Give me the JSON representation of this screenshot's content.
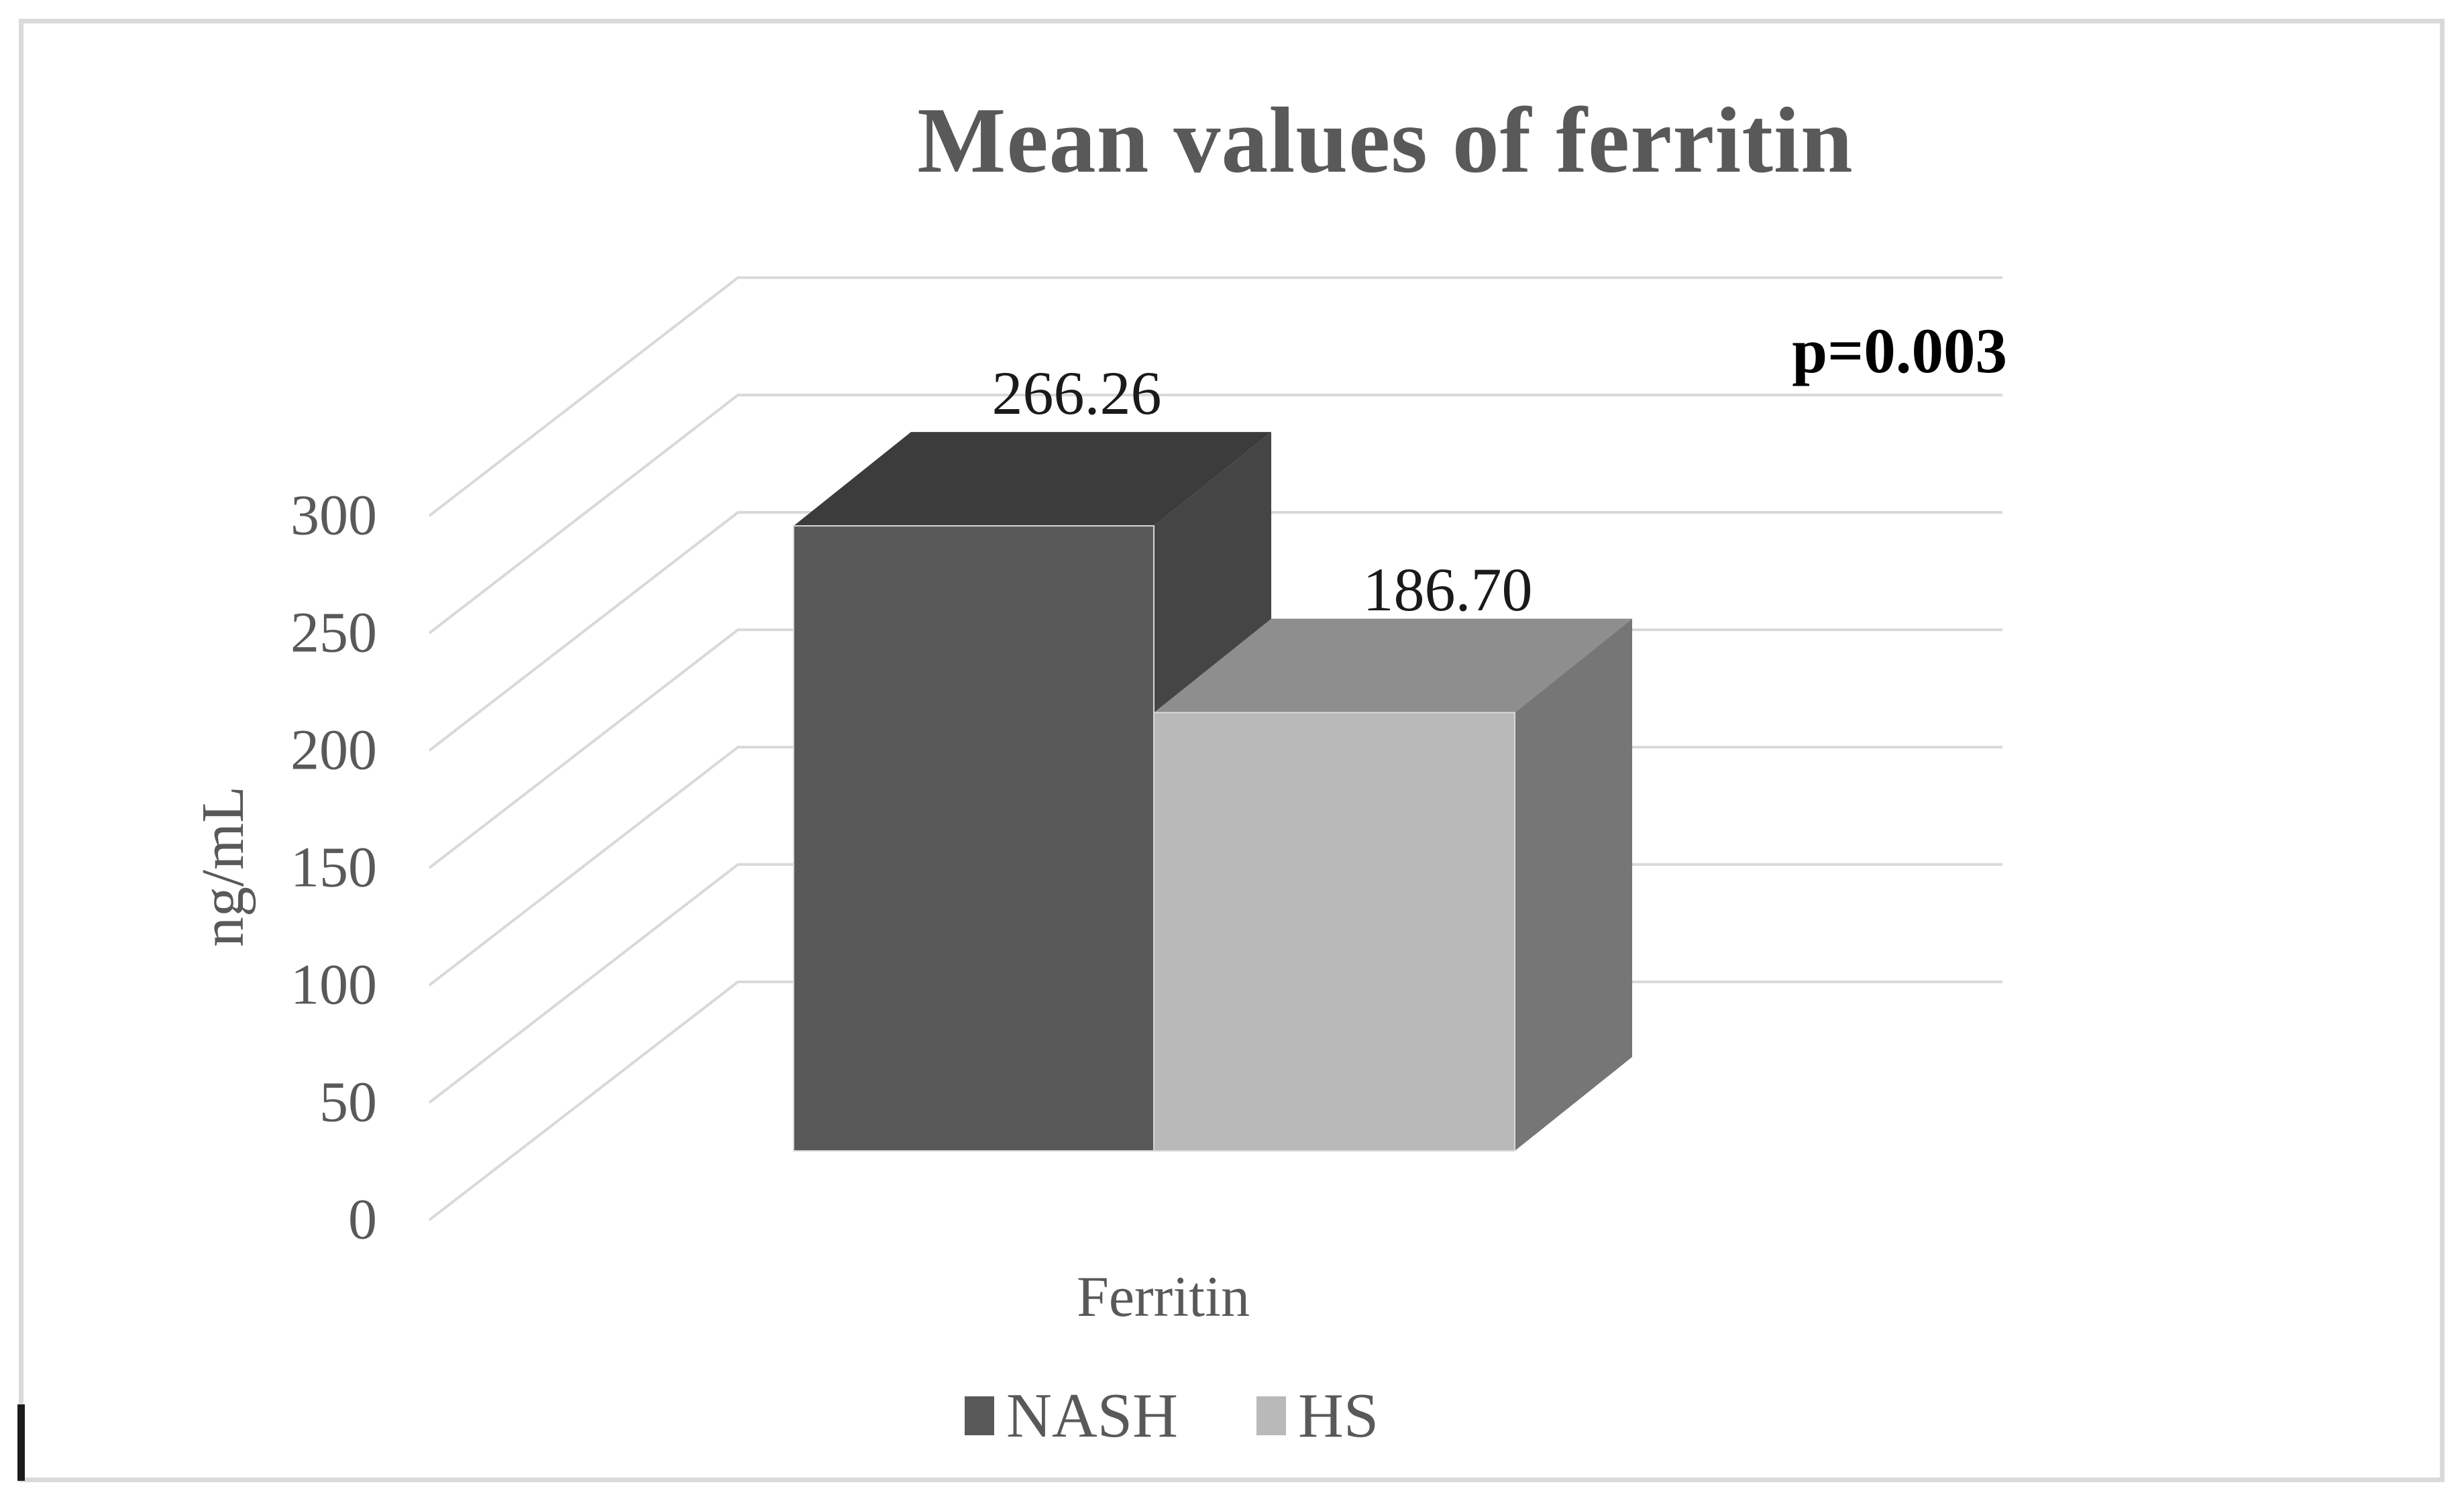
{
  "chart_data": {
    "type": "bar",
    "style": "3d-clustered-column",
    "title": "Mean values of ferritin",
    "categories": [
      "Ferritin"
    ],
    "series": [
      {
        "name": "NASH",
        "values": [
          266.26
        ]
      },
      {
        "name": "HS",
        "values": [
          186.7
        ]
      }
    ],
    "labels": [
      "266.26",
      "186.70"
    ],
    "annotation": "p=0.003",
    "xlabel": "",
    "ylabel": "ng/mL",
    "ylim": [
      0,
      300
    ],
    "tick_step": 50,
    "yticks": [
      "300",
      "250",
      "200",
      "150",
      "100",
      "50",
      "0"
    ],
    "grid": true,
    "legend_position": "bottom",
    "colors": {
      "nash_front": "#595959",
      "nash_top": "#3c3c3c",
      "nash_side": "#454545",
      "hs_front": "#b9b9b9",
      "hs_top": "#8e8e8e",
      "hs_side": "#767676",
      "gridline": "#d9d9d9",
      "edge_highlight": "#d9d9d9",
      "text_gray": "#595959",
      "text_black": "#1a1a1a"
    }
  }
}
